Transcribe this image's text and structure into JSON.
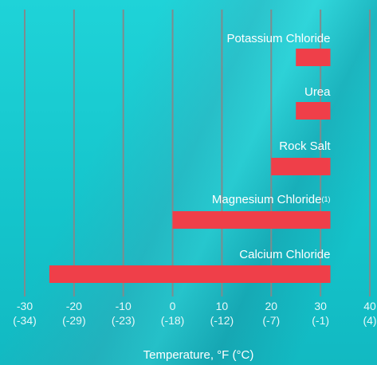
{
  "chart_data": {
    "type": "bar",
    "orientation": "horizontal",
    "categories": [
      {
        "label": "Potassium Chloride",
        "footnote": ""
      },
      {
        "label": "Urea",
        "footnote": ""
      },
      {
        "label": "Rock Salt",
        "footnote": ""
      },
      {
        "label": "Magnesium Chloride",
        "footnote": "(1)"
      },
      {
        "label": "Calcium Chloride",
        "footnote": ""
      }
    ],
    "values": [
      25,
      25,
      20,
      0,
      -25
    ],
    "value_end": 32,
    "xlabel": "Temperature, °F (°C)",
    "xlim": [
      -30,
      40
    ],
    "xticks_f": [
      "-30",
      "-20",
      "-10",
      "0",
      "10",
      "20",
      "30",
      "40"
    ],
    "xticks_c": [
      "(-34)",
      "(-29)",
      "(-23)",
      "(-18)",
      "(-12)",
      "(-7)",
      "(-1)",
      "(4)"
    ],
    "grid": "vertical",
    "colors": {
      "bar": "#ef3f49",
      "grid": "#7d8c8e",
      "text": "#ffffff"
    }
  }
}
